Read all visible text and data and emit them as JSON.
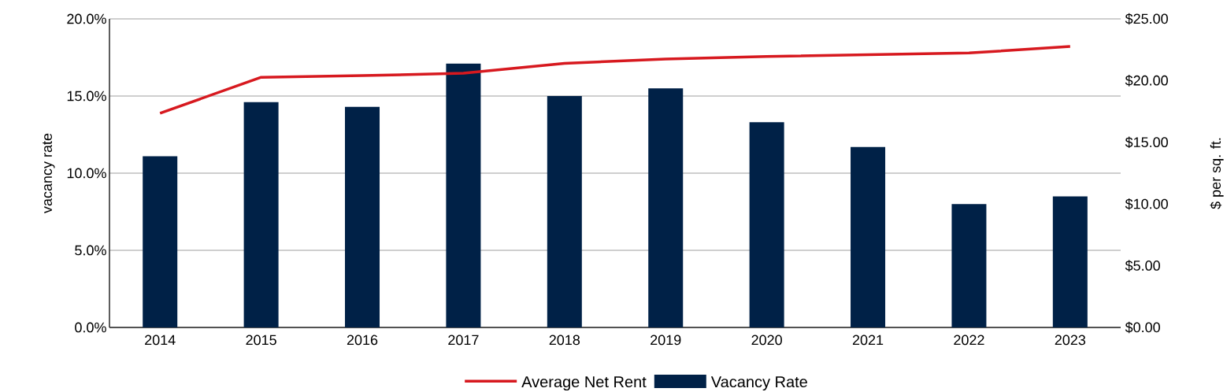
{
  "chart_data": {
    "type": "bar",
    "categories": [
      "2014",
      "2015",
      "2016",
      "2017",
      "2018",
      "2019",
      "2020",
      "2021",
      "2022",
      "2023"
    ],
    "ylabel": "vacancy rate",
    "y2label": "$ per sq. ft.",
    "series": [
      {
        "name": "Average Net Rent",
        "type": "line",
        "axis": "y2",
        "color": "#d7191f",
        "values": [
          17.36,
          20.27,
          20.4,
          20.6,
          21.4,
          21.74,
          21.96,
          22.1,
          22.24,
          22.76
        ]
      },
      {
        "name": "Vacancy Rate",
        "axis": "y",
        "color": "#002147",
        "values": [
          11.1,
          14.6,
          14.3,
          17.1,
          15.0,
          15.5,
          13.3,
          11.7,
          8.0,
          8.5
        ]
      }
    ],
    "ylim": [
      0,
      20
    ],
    "yticks": [
      {
        "value": 0,
        "label": "0.0%"
      },
      {
        "value": 5,
        "label": "5.0%"
      },
      {
        "value": 10,
        "label": "10.0%"
      },
      {
        "value": 15,
        "label": "15.0%"
      },
      {
        "value": 20,
        "label": "20.0%"
      }
    ],
    "y2lim": [
      0,
      25
    ],
    "y2ticks": [
      {
        "value": 0,
        "label": "$0.00"
      },
      {
        "value": 5,
        "label": "$5.00"
      },
      {
        "value": 10,
        "label": "$10.00"
      },
      {
        "value": 15,
        "label": "$15.00"
      },
      {
        "value": 20,
        "label": "$20.00"
      },
      {
        "value": 25,
        "label": "$25.00"
      }
    ],
    "grid": "y",
    "legend": "bottom",
    "marker": "none",
    "line_style": "solid"
  }
}
